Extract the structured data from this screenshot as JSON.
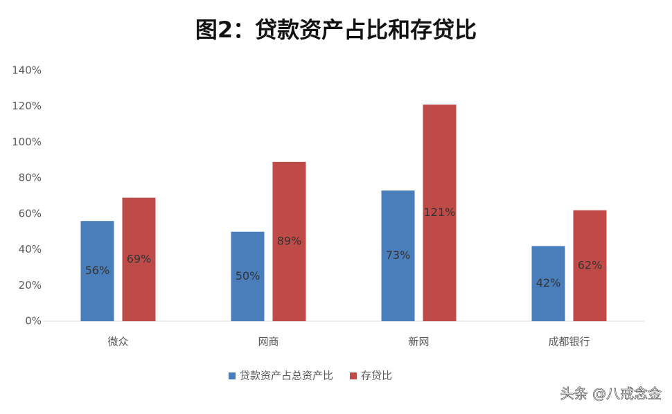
{
  "chart_data": {
    "type": "bar",
    "title": "图2：贷款资产占比和存贷比",
    "categories": [
      "微众",
      "网商",
      "新网",
      "成都银行"
    ],
    "series": [
      {
        "name": "贷款资产占总资产比",
        "color": "#4a7ebb",
        "values": [
          56,
          50,
          73,
          42
        ],
        "value_labels": [
          "56%",
          "50%",
          "73%",
          "42%"
        ]
      },
      {
        "name": "存贷比",
        "color": "#be4b48",
        "values": [
          69,
          89,
          121,
          62
        ],
        "value_labels": [
          "69%",
          "89%",
          "121%",
          "62%"
        ]
      }
    ],
    "ylim": [
      0,
      140
    ],
    "yticks": [
      {
        "value": 0,
        "label": "0%"
      },
      {
        "value": 20,
        "label": "20%"
      },
      {
        "value": 40,
        "label": "40%"
      },
      {
        "value": 60,
        "label": "60%"
      },
      {
        "value": 80,
        "label": "80%"
      },
      {
        "value": 100,
        "label": "100%"
      },
      {
        "value": 120,
        "label": "120%"
      },
      {
        "value": 140,
        "label": "140%"
      }
    ],
    "grid": false,
    "legend": "bottom",
    "watermark": "头条 @八戒念金"
  }
}
